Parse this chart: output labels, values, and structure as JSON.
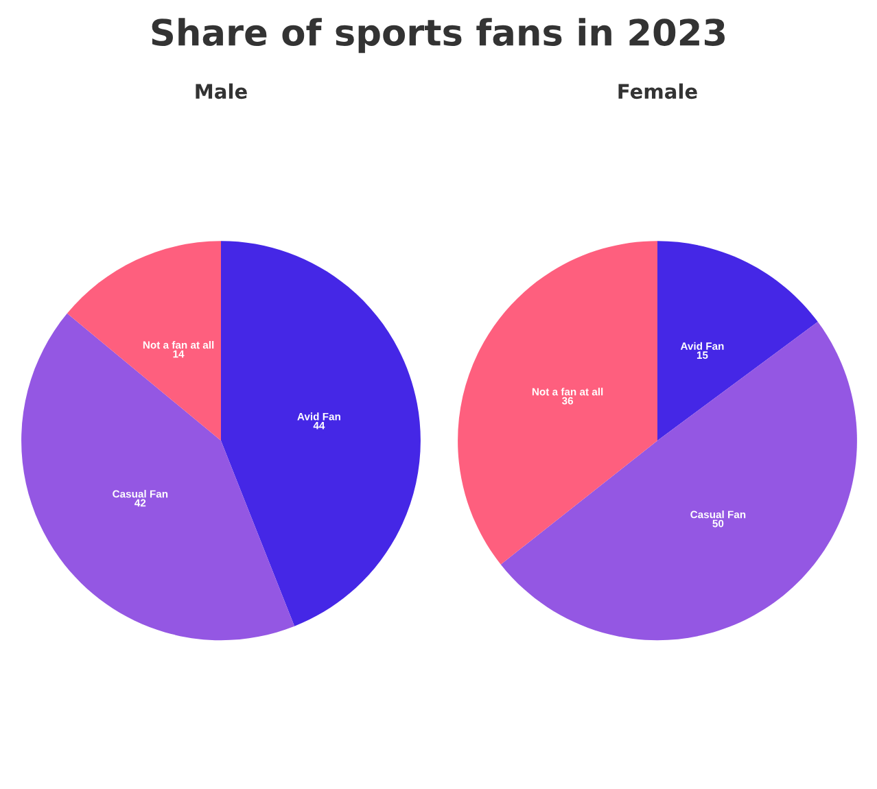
{
  "chart_data": [
    {
      "type": "pie",
      "title": "Share of sports fans in 2023",
      "subtitle": "Male",
      "categories": [
        "Avid Fan",
        "Casual Fan",
        "Not a fan at all"
      ],
      "values": [
        44,
        42,
        14
      ],
      "colors": [
        "#4527e6",
        "#9457e3",
        "#fe5f7e"
      ],
      "data_labels": true
    },
    {
      "type": "pie",
      "subtitle": "Female",
      "categories": [
        "Avid Fan",
        "Casual Fan",
        "Not a fan at all"
      ],
      "values": [
        15,
        50,
        36
      ],
      "colors": [
        "#4527e6",
        "#9457e3",
        "#fe5f7e"
      ],
      "data_labels": true
    }
  ]
}
